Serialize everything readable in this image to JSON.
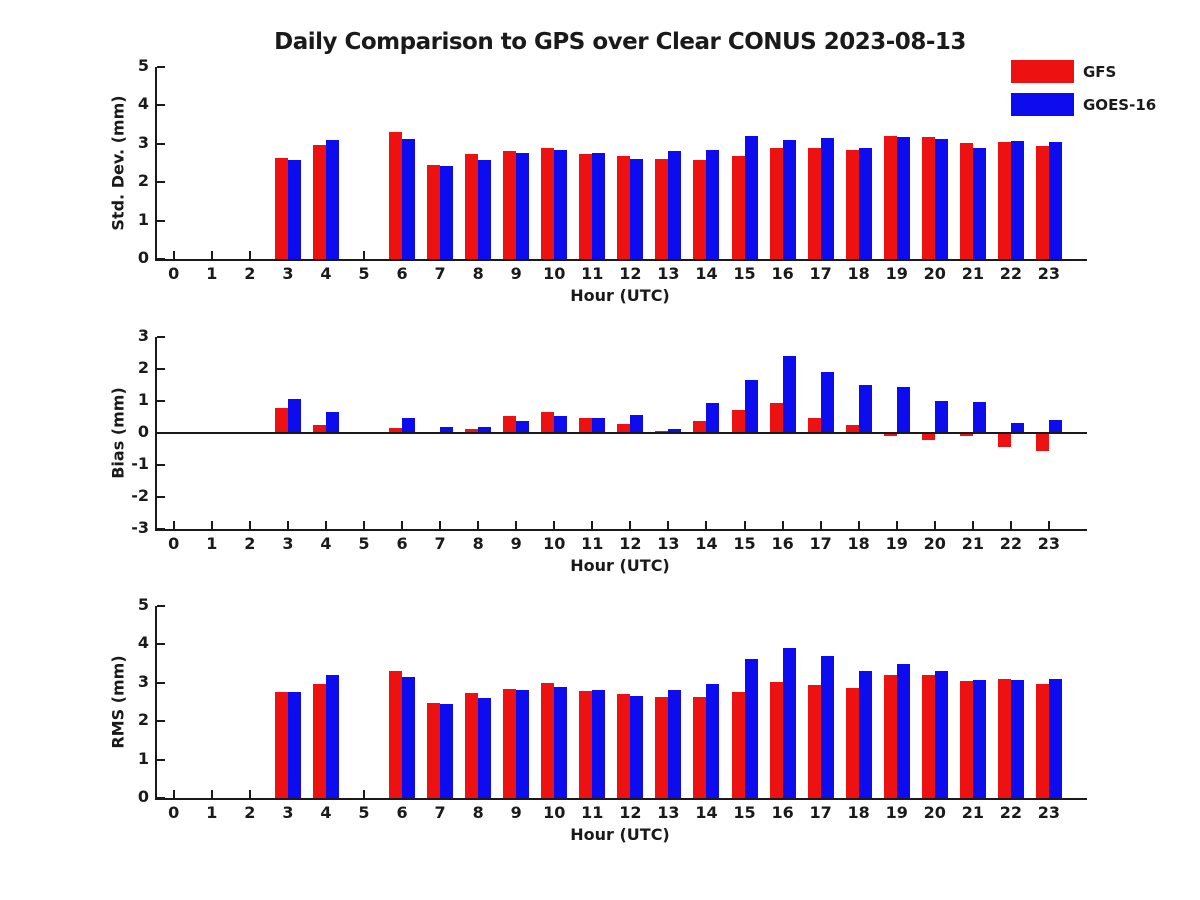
{
  "title": "Daily Comparison to GPS over Clear CONUS 2023-08-13",
  "legend": {
    "items": [
      {
        "label": "GFS",
        "color": "#ee1111"
      },
      {
        "label": "GOES-16",
        "color": "#0c0cee"
      }
    ]
  },
  "chart_data": [
    {
      "type": "bar",
      "name": "std-dev",
      "ylabel": "Std. Dev. (mm)",
      "xlabel": "Hour (UTC)",
      "ylim": [
        0,
        5
      ],
      "yticks": [
        0,
        1,
        2,
        3,
        4,
        5
      ],
      "grid": false,
      "legend_position": "top-right",
      "categories": [
        "0",
        "1",
        "2",
        "3",
        "4",
        "5",
        "6",
        "7",
        "8",
        "9",
        "10",
        "11",
        "12",
        "13",
        "14",
        "15",
        "16",
        "17",
        "18",
        "19",
        "20",
        "21",
        "22",
        "23"
      ],
      "series": [
        {
          "name": "GFS",
          "color": "#ee1111",
          "values": [
            null,
            null,
            null,
            2.62,
            2.96,
            null,
            3.3,
            2.45,
            2.73,
            2.81,
            2.9,
            2.74,
            2.68,
            2.61,
            2.58,
            2.67,
            2.89,
            2.9,
            2.85,
            3.21,
            3.19,
            3.02,
            3.05,
            2.93
          ]
        },
        {
          "name": "GOES-16",
          "color": "#0c0cee",
          "values": [
            null,
            null,
            null,
            2.59,
            3.11,
            null,
            3.13,
            2.43,
            2.58,
            2.77,
            2.85,
            2.76,
            2.61,
            2.8,
            2.83,
            3.21,
            3.1,
            3.14,
            2.89,
            3.18,
            3.13,
            2.89,
            3.07,
            3.04
          ]
        }
      ]
    },
    {
      "type": "bar",
      "name": "bias",
      "ylabel": "Bias (mm)",
      "xlabel": "Hour (UTC)",
      "ylim": [
        -3,
        3
      ],
      "yticks": [
        -3,
        -2,
        -1,
        0,
        1,
        2,
        3
      ],
      "grid": false,
      "zero_line": true,
      "categories": [
        "0",
        "1",
        "2",
        "3",
        "4",
        "5",
        "6",
        "7",
        "8",
        "9",
        "10",
        "11",
        "12",
        "13",
        "14",
        "15",
        "16",
        "17",
        "18",
        "19",
        "20",
        "21",
        "22",
        "23"
      ],
      "series": [
        {
          "name": "GFS",
          "color": "#ee1111",
          "values": [
            null,
            null,
            null,
            0.78,
            0.25,
            null,
            0.15,
            0.02,
            0.12,
            0.53,
            0.66,
            0.46,
            0.27,
            0.07,
            0.38,
            0.73,
            0.95,
            0.46,
            0.25,
            -0.1,
            -0.22,
            -0.08,
            -0.43,
            -0.55
          ]
        },
        {
          "name": "GOES-16",
          "color": "#0c0cee",
          "values": [
            null,
            null,
            null,
            1.05,
            0.66,
            null,
            0.47,
            0.2,
            0.2,
            0.39,
            0.52,
            0.46,
            0.56,
            0.12,
            0.95,
            1.66,
            2.4,
            1.91,
            1.5,
            1.45,
            1.01,
            0.96,
            0.3,
            0.41
          ]
        }
      ]
    },
    {
      "type": "bar",
      "name": "rms",
      "ylabel": "RMS (mm)",
      "xlabel": "Hour (UTC)",
      "ylim": [
        0,
        5
      ],
      "yticks": [
        0,
        1,
        2,
        3,
        4,
        5
      ],
      "grid": false,
      "categories": [
        "0",
        "1",
        "2",
        "3",
        "4",
        "5",
        "6",
        "7",
        "8",
        "9",
        "10",
        "11",
        "12",
        "13",
        "14",
        "15",
        "16",
        "17",
        "18",
        "19",
        "20",
        "21",
        "22",
        "23"
      ],
      "series": [
        {
          "name": "GFS",
          "color": "#ee1111",
          "values": [
            null,
            null,
            null,
            2.75,
            2.98,
            null,
            3.3,
            2.47,
            2.74,
            2.85,
            3.0,
            2.78,
            2.7,
            2.63,
            2.63,
            2.77,
            3.03,
            2.95,
            2.87,
            3.2,
            3.21,
            3.04,
            3.11,
            2.97
          ]
        },
        {
          "name": "GOES-16",
          "color": "#0c0cee",
          "values": [
            null,
            null,
            null,
            2.77,
            3.2,
            null,
            3.15,
            2.45,
            2.6,
            2.8,
            2.88,
            2.8,
            2.65,
            2.8,
            2.97,
            3.63,
            3.91,
            3.71,
            3.3,
            3.49,
            3.3,
            3.08,
            3.08,
            3.09
          ]
        }
      ]
    }
  ]
}
